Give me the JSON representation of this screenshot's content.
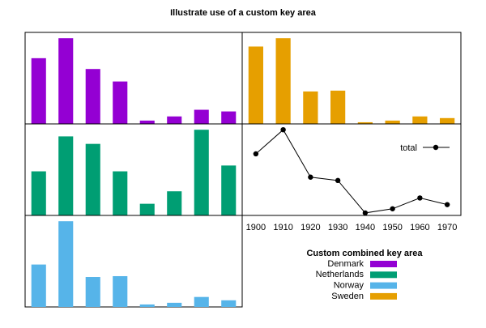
{
  "title": "Illustrate use of a custom key area",
  "legend_title": "Custom combined key area",
  "chart_data": [
    {
      "type": "bar",
      "ylim": [
        0,
        110
      ],
      "series": [
        {
          "name": "Denmark",
          "color": "#9400d3",
          "values": [
            79,
            103,
            66,
            51,
            4,
            9,
            17,
            15
          ]
        }
      ]
    },
    {
      "type": "bar",
      "ylim": [
        0,
        110
      ],
      "series": [
        {
          "name": "Netherlands",
          "color": "#009e73",
          "values": [
            53,
            95,
            86,
            53,
            14,
            29,
            103,
            60
          ]
        }
      ]
    },
    {
      "type": "bar",
      "ylim": [
        0,
        110
      ],
      "series": [
        {
          "name": "Norway",
          "color": "#56b4e9",
          "values": [
            51,
            103,
            36,
            37,
            3,
            5,
            12,
            8
          ]
        }
      ]
    },
    {
      "type": "bar",
      "ylim": [
        0,
        110
      ],
      "series": [
        {
          "name": "Sweden",
          "color": "#e69f00",
          "values": [
            93,
            103,
            39,
            40,
            2,
            4,
            9,
            7
          ]
        }
      ]
    },
    {
      "type": "line",
      "ylim": [
        0,
        110
      ],
      "categories": [
        "1900",
        "1910",
        "1920",
        "1930",
        "1940",
        "1950",
        "1960",
        "1970"
      ],
      "series": [
        {
          "name": "total",
          "color": "#000000",
          "values": [
            74,
            103,
            46,
            42,
            3,
            8,
            21,
            13
          ]
        }
      ]
    }
  ]
}
